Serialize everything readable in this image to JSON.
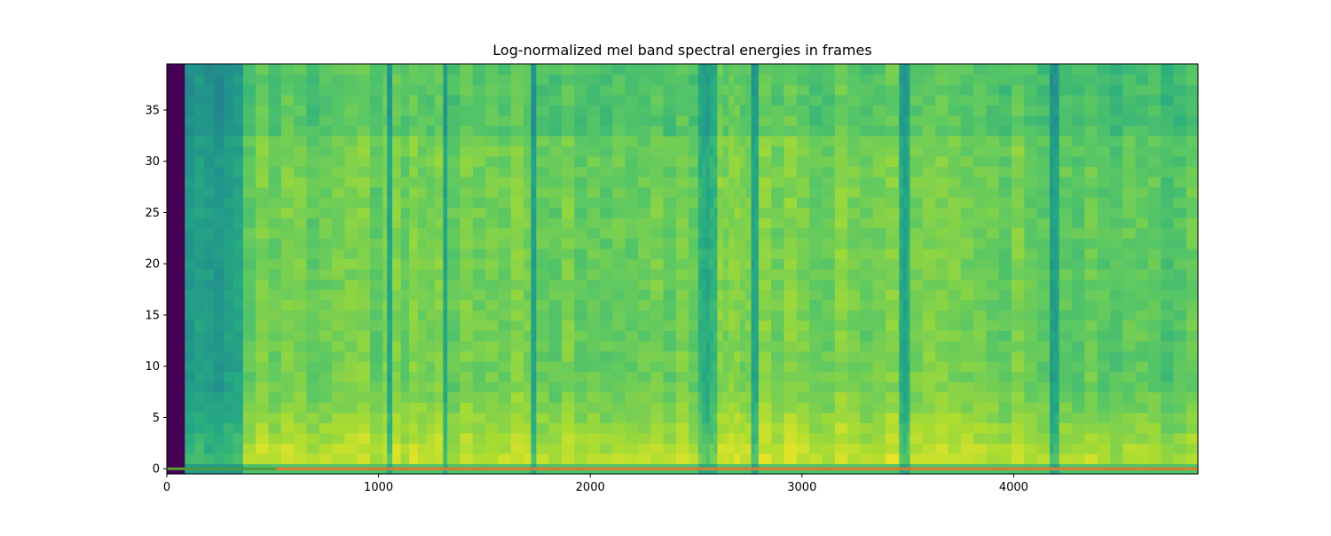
{
  "chart_data": {
    "type": "heatmap",
    "title": "Log-normalized mel band spectral energies in frames",
    "xlabel": "",
    "ylabel": "",
    "xlim": [
      0,
      4870
    ],
    "ylim": [
      -0.5,
      39.5
    ],
    "n_bands": 40,
    "colormap": "viridis",
    "x_ticks": [
      0,
      1000,
      2000,
      3000,
      4000
    ],
    "y_ticks": [
      0,
      5,
      10,
      15,
      20,
      25,
      30,
      35
    ],
    "frame_segments": [
      {
        "x0": 0,
        "x1": 85,
        "level": 0.0
      },
      {
        "x0": 85,
        "x1": 360,
        "level": 0.55
      },
      {
        "x0": 360,
        "x1": 1040,
        "level": 0.78
      },
      {
        "x0": 1040,
        "x1": 1065,
        "level": 0.6
      },
      {
        "x0": 1065,
        "x1": 1305,
        "level": 0.78
      },
      {
        "x0": 1305,
        "x1": 1325,
        "level": 0.62
      },
      {
        "x0": 1325,
        "x1": 1720,
        "level": 0.79
      },
      {
        "x0": 1720,
        "x1": 1745,
        "level": 0.6
      },
      {
        "x0": 1745,
        "x1": 2510,
        "level": 0.79
      },
      {
        "x0": 2510,
        "x1": 2600,
        "level": 0.63
      },
      {
        "x0": 2600,
        "x1": 2760,
        "level": 0.78
      },
      {
        "x0": 2760,
        "x1": 2795,
        "level": 0.6
      },
      {
        "x0": 2795,
        "x1": 3460,
        "level": 0.79
      },
      {
        "x0": 3460,
        "x1": 3510,
        "level": 0.6
      },
      {
        "x0": 3510,
        "x1": 4170,
        "level": 0.78
      },
      {
        "x0": 4170,
        "x1": 4215,
        "level": 0.6
      },
      {
        "x0": 4215,
        "x1": 4870,
        "level": 0.74
      }
    ],
    "band0_line": [
      {
        "x0": 0,
        "x1": 85,
        "color": "#5aa12e"
      },
      {
        "x0": 85,
        "x1": 515,
        "color": "#4d9b3a"
      },
      {
        "x0": 515,
        "x1": 4870,
        "color": "#e2782a"
      }
    ],
    "grid": false,
    "colors": {
      "axis": "#000000",
      "background": "#ffffff"
    }
  }
}
